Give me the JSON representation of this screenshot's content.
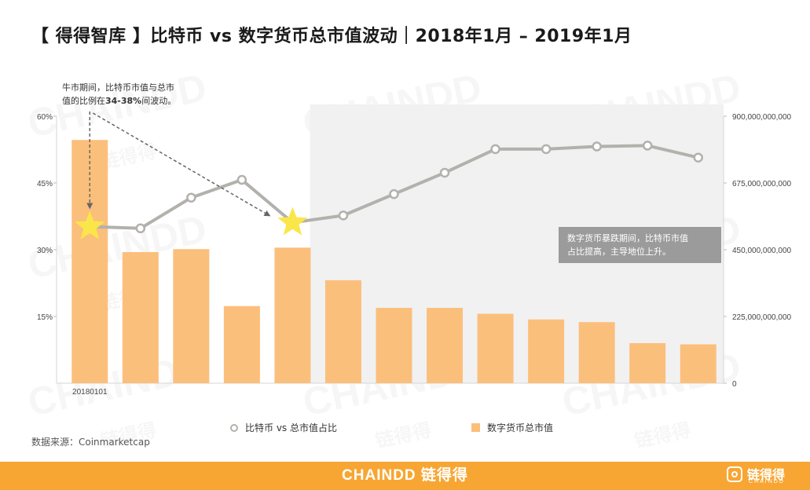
{
  "title": "【 得得智库 】比特币 vs 数字货币总市值波动｜2018年1月 – 2019年1月",
  "source": "数据来源：Coinmarketcap",
  "footer": {
    "brand": "CHAINDD 链得得",
    "logo_cn": "链得得",
    "logo_en": "CHAINDD"
  },
  "watermark": {
    "text": "CHAINDD",
    "cn": "链得得"
  },
  "colors": {
    "bar": "#fbbf7c",
    "line": "#b3b1ac",
    "marker_fill": "#ffffff",
    "star": "#fbe64a",
    "shade": "#f1f1f2",
    "callout_bg": "#9b9b9b",
    "footer": "#f7a633"
  },
  "notes": {
    "top_left_line1": "牛市期间，比特币市值与总市",
    "top_left_line2_pre": "值的比例在",
    "top_left_line2_bold": "34-38%",
    "top_left_line2_post": "间波动。",
    "callout_line1": "数字货币暴跌期间，比特币市值",
    "callout_line2": "占比提高，主导地位上升。"
  },
  "chart_data": {
    "type": "bar+line",
    "categories": [
      "20180101",
      "",
      "",
      "",
      "",
      "",
      "",
      "",
      "",
      "",
      "",
      "",
      ""
    ],
    "x_tick_labels": [
      "20180101"
    ],
    "left_axis": {
      "ticks": [
        "60%",
        "45%",
        "30%",
        "15%"
      ],
      "min": 0,
      "max": 60
    },
    "right_axis": {
      "ticks": [
        "900,000,000,000",
        "675,000,000,000",
        "450,000,000,000",
        "225,000,000,000",
        "0"
      ],
      "min": 0,
      "max": 900000000000
    },
    "series": [
      {
        "name": "数字货币总市值",
        "type": "bar",
        "axis": "right",
        "values": [
          820000000000,
          442000000000,
          452000000000,
          260000000000,
          457000000000,
          347000000000,
          254000000000,
          254000000000,
          234000000000,
          215000000000,
          206000000000,
          135000000000,
          131000000000
        ]
      },
      {
        "name": "比特币 vs 总市值占比",
        "type": "line",
        "axis": "left",
        "values": [
          35.2,
          34.8,
          41.7,
          45.7,
          36.1,
          37.7,
          42.5,
          47.3,
          52.6,
          52.6,
          53.2,
          53.4,
          50.7
        ]
      }
    ],
    "highlight_points": [
      0,
      4
    ],
    "shaded_from_index": 5,
    "grid": false,
    "legend": "bottom-center"
  }
}
